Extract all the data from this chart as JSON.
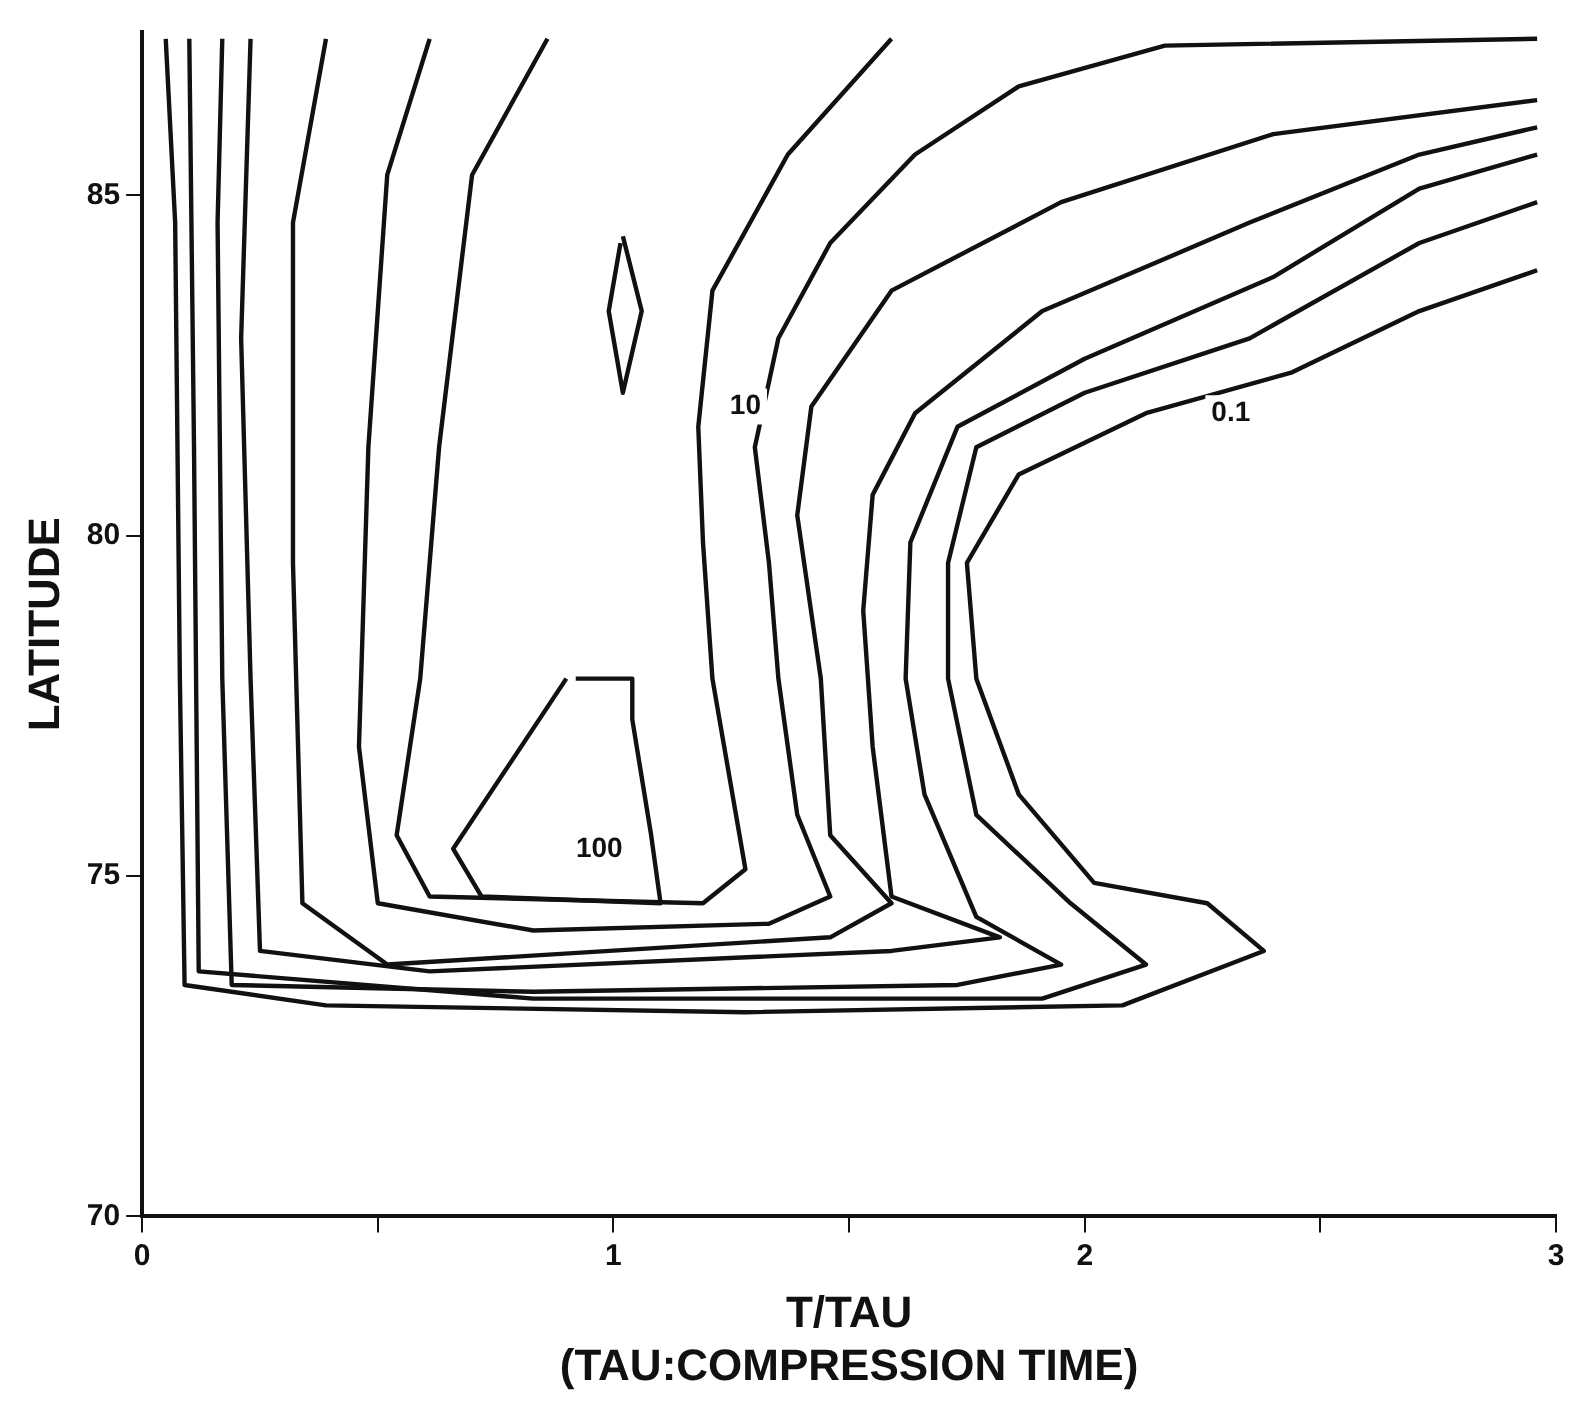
{
  "chart_data": {
    "type": "line",
    "xlabel": "T/TAU\n(TAU:COMPRESSION TIME)",
    "ylabel": "LATITUDE",
    "xlim": [
      0,
      3
    ],
    "ylim": [
      70,
      87.4
    ],
    "xticks": [
      0,
      {
        "value": 0.5,
        "label": null
      },
      1,
      {
        "value": 1.5,
        "label": null
      },
      2,
      {
        "value": 2.5,
        "label": null
      },
      3
    ],
    "yticks": [
      70,
      75,
      80,
      85
    ],
    "grid": false,
    "legend": false,
    "marker": "none",
    "line_style": "solid",
    "series": [
      {
        "color": "#111111",
        "x": [
          0.05,
          0.07,
          0.08,
          0.09,
          0.39,
          1.28,
          2.08,
          2.38,
          2.26,
          2.02,
          1.86,
          1.77,
          1.75,
          1.86,
          2.13,
          2.44,
          2.71,
          2.96
        ],
        "values": [
          87.3,
          84.6,
          77.9,
          73.4,
          73.1,
          73.0,
          73.1,
          73.9,
          74.6,
          74.9,
          76.2,
          77.9,
          79.6,
          80.9,
          81.8,
          82.4,
          83.3,
          83.9
        ]
      },
      {
        "color": "#111111",
        "x": [
          0.1,
          0.11,
          0.12,
          0.83,
          1.91,
          2.13,
          1.97,
          1.77,
          1.71,
          1.71,
          1.77,
          2.0,
          2.35,
          2.71,
          2.96
        ],
        "values": [
          87.3,
          81.3,
          73.6,
          73.2,
          73.2,
          73.7,
          74.6,
          75.9,
          77.9,
          79.6,
          81.3,
          82.1,
          82.9,
          84.3,
          84.9
        ]
      },
      {
        "color": "#111111",
        "x": [
          0.17,
          0.16,
          0.17,
          0.19,
          0.83,
          1.73,
          1.95,
          1.77,
          1.66,
          1.62,
          1.63,
          1.73,
          2.0,
          2.4,
          2.71,
          2.96
        ],
        "values": [
          87.3,
          84.6,
          77.9,
          73.4,
          73.3,
          73.4,
          73.7,
          74.4,
          76.2,
          77.9,
          79.9,
          81.6,
          82.6,
          83.8,
          85.1,
          85.6
        ]
      },
      {
        "color": "#111111",
        "x": [
          0.23,
          0.21,
          0.23,
          0.25,
          0.61,
          1.59,
          1.82,
          1.59,
          1.55,
          1.53,
          1.55,
          1.64,
          1.91,
          2.35,
          2.71,
          2.96
        ],
        "values": [
          87.3,
          82.9,
          77.9,
          73.9,
          73.6,
          73.9,
          74.1,
          74.7,
          76.9,
          78.9,
          80.6,
          81.8,
          83.3,
          84.6,
          85.6,
          86.0
        ]
      },
      {
        "color": "#111111",
        "x": [
          0.39,
          0.32,
          0.32,
          0.34,
          0.52,
          1.46,
          1.59,
          1.46,
          1.44,
          1.39,
          1.42,
          1.59,
          1.95,
          2.4,
          2.96
        ],
        "values": [
          87.3,
          84.6,
          79.6,
          74.6,
          73.7,
          74.1,
          74.6,
          75.6,
          77.9,
          80.3,
          81.9,
          83.6,
          84.9,
          85.9,
          86.4
        ]
      },
      {
        "color": "#111111",
        "x": [
          0.61,
          0.52,
          0.48,
          0.46,
          0.5,
          0.83,
          1.33,
          1.46,
          1.39,
          1.35,
          1.33,
          1.3,
          1.35,
          1.46,
          1.64,
          1.86,
          2.17,
          2.96
        ],
        "values": [
          87.3,
          85.3,
          81.3,
          76.9,
          74.6,
          74.2,
          74.3,
          74.7,
          75.9,
          77.9,
          79.6,
          81.3,
          82.9,
          84.3,
          85.6,
          86.6,
          87.2,
          87.3
        ]
      },
      {
        "color": "#111111",
        "x": [
          0.86,
          0.7,
          0.63,
          0.59,
          0.54,
          0.61,
          1.19,
          1.28,
          1.21,
          1.19,
          1.18,
          1.21,
          1.37,
          1.59
        ],
        "values": [
          87.3,
          85.3,
          81.3,
          77.9,
          75.6,
          74.7,
          74.6,
          75.1,
          77.9,
          79.9,
          81.6,
          83.6,
          85.6,
          87.3
        ]
      },
      {
        "color": "#111111",
        "x": [
          0.9,
          0.66,
          0.72,
          1.1,
          1.08,
          1.04,
          1.04,
          0.92
        ],
        "values": [
          77.9,
          75.4,
          74.7,
          74.6,
          75.6,
          77.3,
          77.9,
          77.9
        ]
      },
      {
        "color": "#111111",
        "x": [
          1.02,
          1.06,
          1.02,
          0.99,
          1.015
        ],
        "values": [
          84.4,
          83.3,
          82.1,
          83.3,
          84.3
        ]
      }
    ],
    "annotations": [
      {
        "text": "100",
        "x": 0.97,
        "y": 75.4
      },
      {
        "text": "10",
        "x": 1.28,
        "y": 81.9
      },
      {
        "text": "0.1",
        "x": 2.31,
        "y": 81.8
      }
    ]
  }
}
